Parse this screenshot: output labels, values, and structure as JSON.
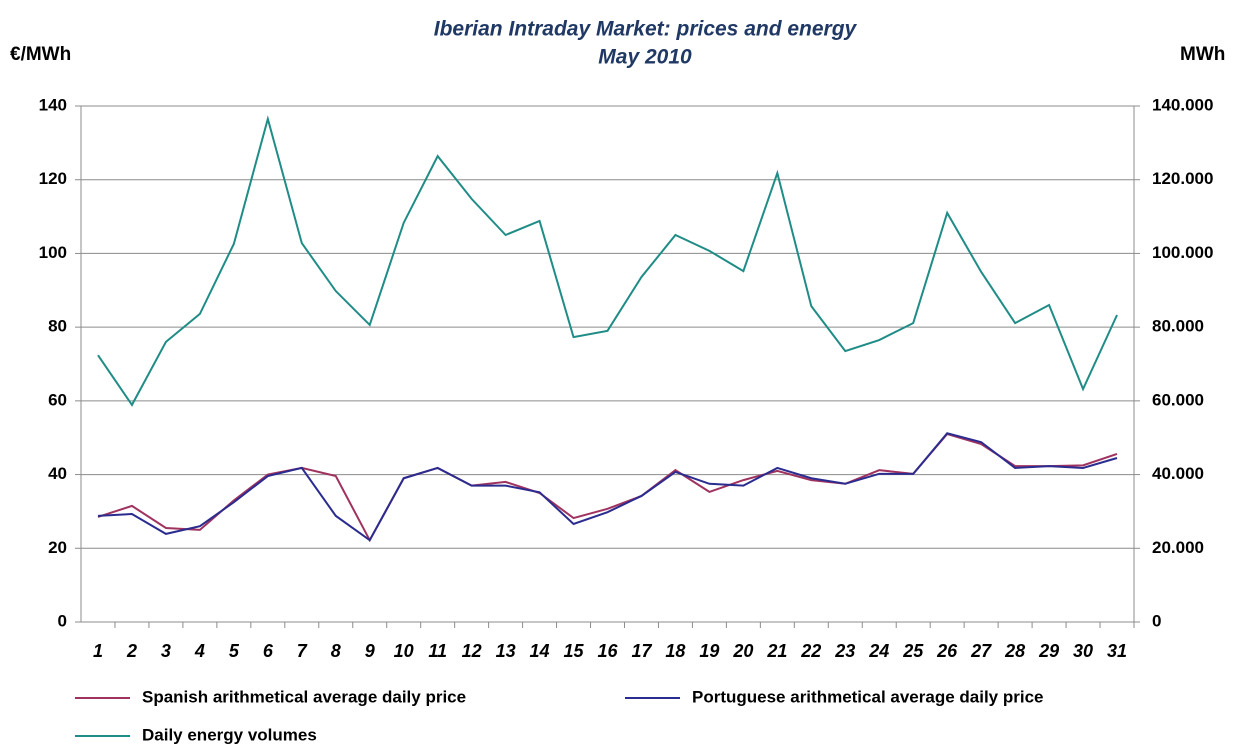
{
  "chart_data": {
    "type": "line",
    "title": [
      "Iberian Intraday Market: prices and energy",
      "May 2010"
    ],
    "y_label": "€/MWh",
    "y2_label": "MWh",
    "categories": [
      "1",
      "2",
      "3",
      "4",
      "5",
      "6",
      "7",
      "8",
      "9",
      "10",
      "11",
      "12",
      "13",
      "14",
      "15",
      "16",
      "17",
      "18",
      "19",
      "20",
      "21",
      "22",
      "23",
      "24",
      "25",
      "26",
      "27",
      "28",
      "29",
      "30",
      "31"
    ],
    "series": [
      {
        "name": "Spanish arithmetical average daily price",
        "color": "#A0325F",
        "values": [
          28.5,
          31.5,
          25.5,
          25,
          33,
          40,
          41.8,
          39.6,
          22.2,
          39,
          41.8,
          37,
          38,
          35,
          28.2,
          30.7,
          34.2,
          41.2,
          35.3,
          38.5,
          41,
          38.5,
          37.5,
          41.2,
          40.2,
          51,
          48.3,
          42.3,
          42.3,
          42.5,
          45.6
        ]
      },
      {
        "name": "Portuguese arithmetical average daily price",
        "color": "#2B2C8F",
        "values": [
          28.8,
          29.3,
          23.9,
          26,
          32.5,
          39.6,
          41.8,
          28.8,
          22.2,
          39,
          41.8,
          37,
          37,
          35.2,
          26.6,
          29.8,
          34.2,
          40.7,
          37.5,
          37,
          41.8,
          39,
          37.5,
          40.2,
          40.2,
          51.2,
          48.8,
          41.8,
          42.3,
          41.8,
          44.5
        ]
      },
      {
        "name": "Daily energy volumes",
        "color": "#1F8C86",
        "axis": "y2",
        "values": [
          72400,
          58900,
          76000,
          83600,
          102600,
          136500,
          102800,
          89800,
          80600,
          108300,
          126400,
          114800,
          105000,
          108800,
          77300,
          79000,
          93600,
          105000,
          100700,
          95200,
          121800,
          85700,
          73500,
          76500,
          81100,
          111000,
          95000,
          81100,
          86000,
          63200,
          83300
        ]
      }
    ],
    "ylim": [
      0,
      140
    ],
    "yticks": [
      0,
      20,
      40,
      60,
      80,
      100,
      120,
      140
    ],
    "y2lim": [
      0,
      140000
    ],
    "y2ticks": [
      0,
      {
        "value": 20000,
        "label": "20.000"
      },
      {
        "value": 40000,
        "label": "40.000"
      },
      {
        "value": 60000,
        "label": "60.000"
      },
      {
        "value": 80000,
        "label": "80.000"
      },
      {
        "value": 100000,
        "label": "100.000"
      },
      {
        "value": 120000,
        "label": "120.000"
      },
      {
        "value": 140000,
        "label": "140.000"
      }
    ],
    "grid": true,
    "legend": "bottom"
  }
}
